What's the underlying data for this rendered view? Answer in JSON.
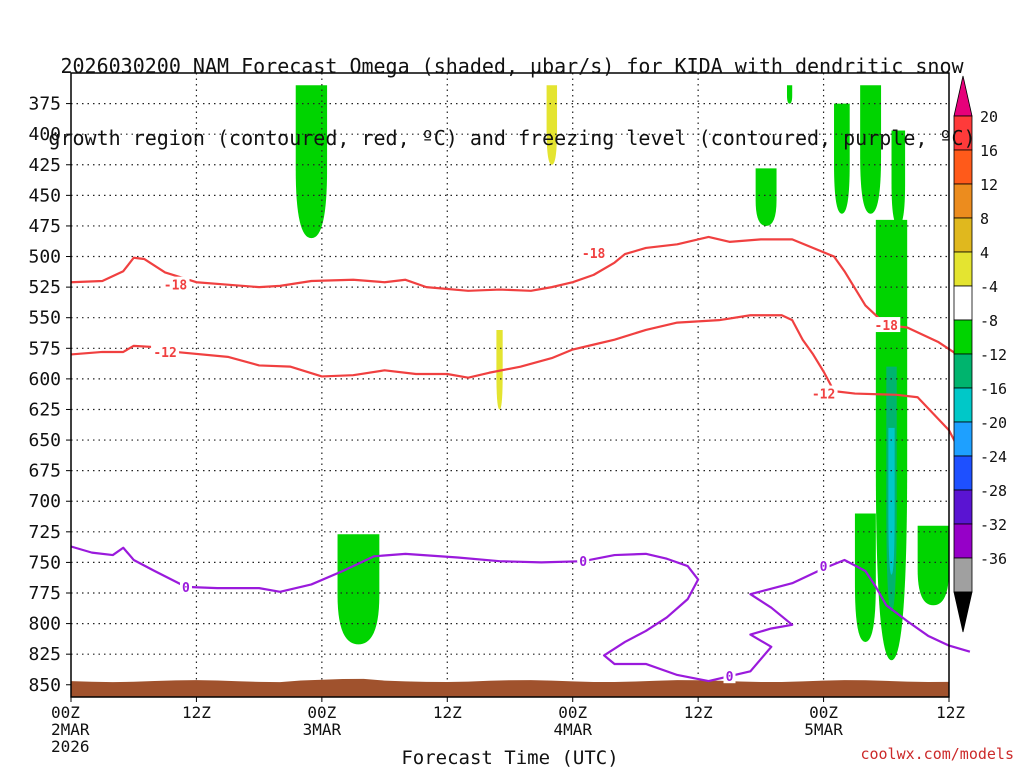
{
  "title": {
    "line1": "2026030200 NAM Forecast Omega (shaded, μbar/s) for KIDA with dendritic snow",
    "line2": "growth region (contoured, red, ºC) and freezing level (contoured, purple, ºC)"
  },
  "credit": "coolwx.com/models",
  "chart_data": {
    "type": "heatmap",
    "xlabel": "Forecast Time (UTC)",
    "xlim_hours": [
      0,
      84
    ],
    "x_ticks": [
      {
        "hour": 0,
        "lines": [
          "00Z",
          "2MAR",
          "2026"
        ]
      },
      {
        "hour": 12,
        "lines": [
          "12Z"
        ]
      },
      {
        "hour": 24,
        "lines": [
          "00Z",
          "3MAR"
        ]
      },
      {
        "hour": 36,
        "lines": [
          "12Z"
        ]
      },
      {
        "hour": 48,
        "lines": [
          "00Z",
          "4MAR"
        ]
      },
      {
        "hour": 60,
        "lines": [
          "12Z"
        ]
      },
      {
        "hour": 72,
        "lines": [
          "00Z",
          "5MAR"
        ]
      },
      {
        "hour": 84,
        "lines": [
          "12Z"
        ]
      }
    ],
    "ylabel": "",
    "ylim_hpa": [
      860,
      350
    ],
    "y_ticks": [
      375,
      400,
      425,
      450,
      475,
      500,
      525,
      550,
      575,
      600,
      625,
      650,
      675,
      700,
      725,
      750,
      775,
      800,
      825,
      850
    ],
    "grid": true,
    "colorbar": {
      "levels": [
        {
          "label": "20",
          "color": "#ff3a3a"
        },
        {
          "label": "16",
          "color": "#ff5a1a"
        },
        {
          "label": "12",
          "color": "#ec8c1e"
        },
        {
          "label": "8",
          "color": "#e0b81e"
        },
        {
          "label": "4",
          "color": "#e4e430"
        },
        {
          "label": "-4",
          "color": "#ffffff"
        },
        {
          "label": "-8",
          "color": "#00d400"
        },
        {
          "label": "-12",
          "color": "#00b46e"
        },
        {
          "label": "-16",
          "color": "#00c8c8"
        },
        {
          "label": "-20",
          "color": "#1ea0ff"
        },
        {
          "label": "-24",
          "color": "#1e50ff"
        },
        {
          "label": "-28",
          "color": "#5a14d2"
        },
        {
          "label": "-32",
          "color": "#9600c8"
        },
        {
          "label": "-36",
          "color": "#a0a0a0"
        }
      ],
      "top_arrow_color": "#e6007a",
      "bottom_arrow_color": "#000000"
    },
    "contour_labels": {
      "snow_upper": "-18",
      "snow_lower": "-12",
      "freezing": "0"
    },
    "series": [
      {
        "name": "-18",
        "color": "#f04040",
        "points": [
          [
            0,
            521
          ],
          [
            3,
            520
          ],
          [
            5,
            512
          ],
          [
            6,
            501
          ],
          [
            7,
            502
          ],
          [
            9,
            513
          ],
          [
            12,
            521
          ],
          [
            15,
            523
          ],
          [
            18,
            525
          ],
          [
            20,
            524
          ],
          [
            23,
            520
          ],
          [
            27,
            519
          ],
          [
            30,
            521
          ],
          [
            32,
            519
          ],
          [
            34,
            525
          ],
          [
            38,
            528
          ],
          [
            41,
            527
          ],
          [
            44,
            528
          ],
          [
            46,
            525
          ],
          [
            48,
            521
          ],
          [
            50,
            515
          ],
          [
            52,
            505
          ],
          [
            53,
            498
          ],
          [
            55,
            493
          ],
          [
            58,
            490
          ],
          [
            61,
            484
          ],
          [
            63,
            488
          ],
          [
            66,
            486
          ],
          [
            69,
            486
          ],
          [
            73,
            500
          ],
          [
            74,
            512
          ],
          [
            76,
            540
          ],
          [
            78,
            556
          ],
          [
            80,
            558
          ],
          [
            83,
            570
          ],
          [
            86,
            587
          ]
        ]
      },
      {
        "name": "-12",
        "color": "#f04040",
        "points": [
          [
            0,
            580
          ],
          [
            3,
            578
          ],
          [
            5,
            578
          ],
          [
            6,
            573
          ],
          [
            8,
            574
          ],
          [
            10,
            578
          ],
          [
            15,
            582
          ],
          [
            18,
            589
          ],
          [
            21,
            590
          ],
          [
            24,
            598
          ],
          [
            27,
            597
          ],
          [
            30,
            593
          ],
          [
            33,
            596
          ],
          [
            36,
            596
          ],
          [
            38,
            599
          ],
          [
            40,
            595
          ],
          [
            43,
            590
          ],
          [
            46,
            583
          ],
          [
            48,
            576
          ],
          [
            50,
            572
          ],
          [
            52,
            568
          ],
          [
            55,
            560
          ],
          [
            58,
            554
          ],
          [
            62,
            552
          ],
          [
            65,
            548
          ],
          [
            68,
            548
          ],
          [
            69,
            552
          ],
          [
            70,
            568
          ],
          [
            71,
            580
          ],
          [
            72,
            594
          ],
          [
            73,
            610
          ],
          [
            75,
            612
          ],
          [
            79,
            613
          ],
          [
            81,
            615
          ],
          [
            84,
            642
          ],
          [
            86,
            675
          ]
        ]
      },
      {
        "name": "0",
        "color": "#9a1adc",
        "points": [
          [
            0,
            737
          ],
          [
            2,
            742
          ],
          [
            4,
            744
          ],
          [
            5,
            738
          ],
          [
            6,
            748
          ],
          [
            8,
            757
          ],
          [
            11,
            770
          ],
          [
            14,
            771
          ],
          [
            18,
            771
          ],
          [
            20,
            774
          ],
          [
            23,
            768
          ],
          [
            26,
            757
          ],
          [
            29,
            745
          ],
          [
            32,
            743
          ],
          [
            37,
            746
          ],
          [
            41,
            749
          ],
          [
            45,
            750
          ],
          [
            49,
            749
          ],
          [
            52,
            744
          ],
          [
            55,
            743
          ],
          [
            57,
            747
          ],
          [
            59,
            753
          ],
          [
            60,
            764
          ],
          [
            59,
            780
          ],
          [
            57,
            795
          ],
          [
            55,
            806
          ],
          [
            53,
            815
          ],
          [
            51,
            826
          ],
          [
            52,
            833
          ],
          [
            55,
            833
          ],
          [
            58,
            842
          ],
          [
            61,
            847
          ],
          [
            63,
            843
          ],
          [
            65,
            839
          ],
          [
            66,
            829
          ],
          [
            67,
            819
          ],
          [
            65,
            809
          ],
          [
            67,
            804
          ],
          [
            69,
            801
          ],
          [
            67,
            787
          ],
          [
            65,
            776
          ],
          [
            69,
            767
          ],
          [
            72,
            755
          ],
          [
            74,
            748
          ],
          [
            76,
            757
          ],
          [
            77,
            770
          ],
          [
            78,
            785
          ],
          [
            80,
            798
          ],
          [
            82,
            810
          ],
          [
            84,
            818
          ],
          [
            86,
            823
          ]
        ]
      }
    ],
    "omega_regions": [
      {
        "value_range": "-8 to -4",
        "color": "#00d400",
        "t_range": [
          21.5,
          24.5
        ],
        "p_range": [
          360,
          485
        ]
      },
      {
        "value_range": "4 to 8",
        "color": "#e4e430",
        "t_range": [
          45.5,
          46.5
        ],
        "p_range": [
          360,
          425
        ]
      },
      {
        "value_range": "4 to 8",
        "color": "#e4e430",
        "t_range": [
          40.7,
          41.3
        ],
        "p_range": [
          560,
          625
        ]
      },
      {
        "value_range": "-8 to -4",
        "color": "#00d400",
        "t_range": [
          25.5,
          29.5
        ],
        "p_range": [
          727,
          817
        ]
      },
      {
        "value_range": "-8 to -4",
        "color": "#00d400",
        "t_range": [
          65.5,
          67.5
        ],
        "p_range": [
          428,
          475
        ]
      },
      {
        "value_range": "-8 to -4",
        "color": "#00d400",
        "t_range": [
          68.5,
          69.0
        ],
        "p_range": [
          360,
          375
        ]
      },
      {
        "value_range": "-8 to -4",
        "color": "#00d400",
        "t_range": [
          73.0,
          74.5
        ],
        "p_range": [
          375,
          465
        ]
      },
      {
        "value_range": "-8 to -4",
        "color": "#00d400",
        "t_range": [
          75.5,
          77.5
        ],
        "p_range": [
          360,
          465
        ]
      },
      {
        "value_range": "-8 to -4",
        "color": "#00d400",
        "t_range": [
          78.5,
          79.8
        ],
        "p_range": [
          397,
          475
        ]
      },
      {
        "value_range": "-8 to -4",
        "color": "#00d400",
        "t_range": [
          77.0,
          80.0
        ],
        "p_range": [
          470,
          830
        ]
      },
      {
        "value_range": "-12 to -8",
        "color": "#00b46e",
        "t_range": [
          78.0,
          79.0
        ],
        "p_range": [
          590,
          790
        ]
      },
      {
        "value_range": "-16 to -12",
        "color": "#00c8c8",
        "t_range": [
          78.2,
          78.8
        ],
        "p_range": [
          640,
          760
        ]
      },
      {
        "value_range": "-8 to -4",
        "color": "#00d400",
        "t_range": [
          75.0,
          77.0
        ],
        "p_range": [
          710,
          815
        ]
      },
      {
        "value_range": "-8 to -4",
        "color": "#00d400",
        "t_range": [
          81.0,
          84.0
        ],
        "p_range": [
          720,
          785
        ]
      }
    ],
    "terrain": {
      "color": "#a0522d",
      "pressure_top": 847
    }
  }
}
